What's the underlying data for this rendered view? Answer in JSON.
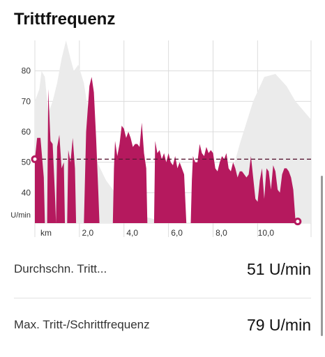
{
  "header": {
    "title": "Trittfrequenz"
  },
  "chart_data": {
    "type": "area",
    "ylabel_unit": "U/min",
    "xlabel_unit": "km",
    "x_ticks": [
      "2,0",
      "4,0",
      "6,0",
      "8,0",
      "10,0"
    ],
    "x_tick_values": [
      2,
      4,
      6,
      8,
      10
    ],
    "y_ticks": [
      40,
      50,
      60,
      70,
      80
    ],
    "xlim": [
      0,
      12.4
    ],
    "ylim": [
      30,
      90
    ],
    "average": 51,
    "colors": {
      "series": "#b5195e",
      "elevation": "#ebebeb",
      "grid": "#dcdcdc",
      "avg_line": "#5a1a36"
    },
    "series": [
      {
        "values": [
          [
            0.0,
            51
          ],
          [
            0.1,
            58
          ],
          [
            0.25,
            58
          ],
          [
            0.4,
            45
          ],
          [
            0.45,
            30
          ],
          [
            0.55,
            30
          ],
          [
            0.6,
            74
          ],
          [
            0.7,
            57
          ],
          [
            0.8,
            56
          ],
          [
            0.9,
            40
          ],
          [
            0.95,
            30
          ],
          [
            1.0,
            55
          ],
          [
            1.1,
            59
          ],
          [
            1.2,
            48
          ],
          [
            1.3,
            50
          ],
          [
            1.35,
            30
          ],
          [
            1.45,
            30
          ],
          [
            1.5,
            54
          ],
          [
            1.6,
            50
          ],
          [
            1.7,
            58
          ],
          [
            1.8,
            48
          ],
          [
            1.85,
            30
          ],
          [
            2.2,
            30
          ],
          [
            2.3,
            60
          ],
          [
            2.45,
            75
          ],
          [
            2.55,
            78
          ],
          [
            2.65,
            73
          ],
          [
            2.75,
            58
          ],
          [
            2.85,
            40
          ],
          [
            2.9,
            30
          ],
          [
            3.5,
            30
          ],
          [
            3.55,
            48
          ],
          [
            3.6,
            57
          ],
          [
            3.7,
            52
          ],
          [
            3.8,
            56
          ],
          [
            3.9,
            62
          ],
          [
            4.0,
            61
          ],
          [
            4.1,
            58
          ],
          [
            4.2,
            60
          ],
          [
            4.3,
            58
          ],
          [
            4.4,
            55
          ],
          [
            4.5,
            56
          ],
          [
            4.6,
            56
          ],
          [
            4.7,
            55
          ],
          [
            4.8,
            63
          ],
          [
            4.9,
            53
          ],
          [
            5.0,
            48
          ],
          [
            5.05,
            30
          ],
          [
            5.35,
            30
          ],
          [
            5.4,
            57
          ],
          [
            5.5,
            53
          ],
          [
            5.6,
            54
          ],
          [
            5.7,
            51
          ],
          [
            5.8,
            53
          ],
          [
            5.9,
            50
          ],
          [
            6.0,
            53
          ],
          [
            6.1,
            50
          ],
          [
            6.2,
            49
          ],
          [
            6.3,
            52
          ],
          [
            6.4,
            48
          ],
          [
            6.5,
            50
          ],
          [
            6.6,
            48
          ],
          [
            6.7,
            46
          ],
          [
            6.8,
            30
          ],
          [
            7.0,
            30
          ],
          [
            7.05,
            44
          ],
          [
            7.1,
            52
          ],
          [
            7.2,
            50
          ],
          [
            7.3,
            50
          ],
          [
            7.4,
            56
          ],
          [
            7.5,
            53
          ],
          [
            7.6,
            52
          ],
          [
            7.7,
            55
          ],
          [
            7.8,
            53
          ],
          [
            7.9,
            54
          ],
          [
            8.0,
            53
          ],
          [
            8.1,
            48
          ],
          [
            8.2,
            47
          ],
          [
            8.3,
            50
          ],
          [
            8.4,
            52
          ],
          [
            8.5,
            51
          ],
          [
            8.6,
            53
          ],
          [
            8.7,
            48
          ],
          [
            8.8,
            47
          ],
          [
            8.9,
            50
          ],
          [
            9.0,
            48
          ],
          [
            9.1,
            45
          ],
          [
            9.2,
            47
          ],
          [
            9.3,
            47
          ],
          [
            9.4,
            46
          ],
          [
            9.5,
            45
          ],
          [
            9.6,
            46
          ],
          [
            9.7,
            52
          ],
          [
            9.8,
            45
          ],
          [
            9.9,
            38
          ],
          [
            10.0,
            37
          ],
          [
            10.1,
            44
          ],
          [
            10.2,
            48
          ],
          [
            10.3,
            38
          ],
          [
            10.4,
            48
          ],
          [
            10.5,
            47
          ],
          [
            10.6,
            41
          ],
          [
            10.7,
            49
          ],
          [
            10.8,
            47
          ],
          [
            10.9,
            41
          ],
          [
            11.0,
            40
          ],
          [
            11.1,
            46
          ],
          [
            11.2,
            48
          ],
          [
            11.3,
            48
          ],
          [
            11.4,
            47
          ],
          [
            11.5,
            45
          ],
          [
            11.6,
            41
          ],
          [
            11.7,
            31
          ],
          [
            11.8,
            31
          ]
        ]
      }
    ]
  },
  "stats": [
    {
      "label": "Durchschn. Tritt...",
      "value": "51 U/min"
    },
    {
      "label": "Max. Tritt-/Schrittfrequenz",
      "value": "79 U/min"
    }
  ]
}
